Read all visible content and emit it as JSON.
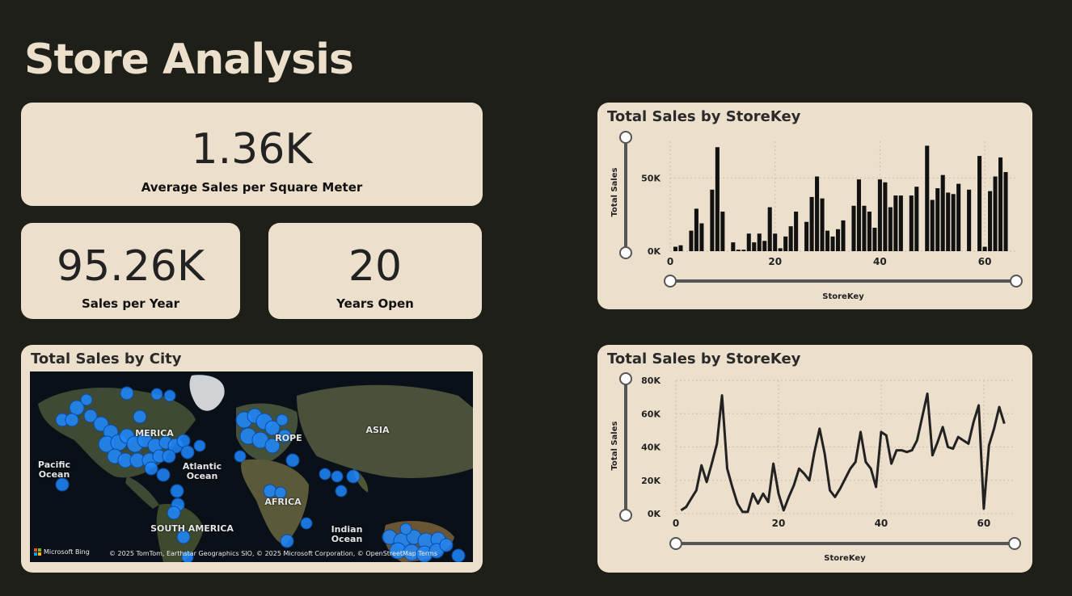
{
  "page": {
    "title": "Store Analysis"
  },
  "kpis": {
    "avg_sales_sqm": {
      "value": "1.36K",
      "label": "Average Sales per Square Meter"
    },
    "sales_per_year": {
      "value": "95.26K",
      "label": "Sales per Year"
    },
    "years_open": {
      "value": "20",
      "label": "Years Open"
    }
  },
  "map": {
    "title": "Total Sales by City",
    "labels": {
      "pacific": "Pacific Ocean",
      "atlantic": "Atlantic Ocean",
      "indian": "Indian Ocean",
      "asia": "ASIA",
      "africa": "AFRICA",
      "south_america": "SOUTH AMERICA",
      "europe": "ROPE",
      "america": "MERICA"
    },
    "attribution": "© 2025 TomTom, Earthstar Geographics SIO, © 2025 Microsoft Corporation, © OpenStreetMap  Terms",
    "provider": "Microsoft Bing"
  },
  "chart_data": [
    {
      "type": "bar",
      "title": "Total Sales by StoreKey",
      "xlabel": "StoreKey",
      "ylabel": "Total Sales",
      "xlim": [
        0,
        66
      ],
      "ylim": [
        0,
        75000
      ],
      "yticks": [
        "0K",
        "50K"
      ],
      "xticks": [
        "0",
        "20",
        "40",
        "60"
      ],
      "x": [
        1,
        2,
        3,
        4,
        5,
        6,
        7,
        8,
        9,
        10,
        11,
        12,
        13,
        14,
        15,
        16,
        17,
        18,
        19,
        20,
        21,
        22,
        23,
        24,
        25,
        26,
        27,
        28,
        29,
        30,
        31,
        32,
        33,
        34,
        35,
        36,
        37,
        38,
        39,
        40,
        41,
        42,
        43,
        44,
        45,
        46,
        47,
        48,
        49,
        50,
        51,
        52,
        53,
        54,
        55,
        56,
        57,
        58,
        59,
        60,
        61,
        62,
        63,
        64,
        65,
        66
      ],
      "values": [
        3000,
        4000,
        0,
        14000,
        29000,
        19000,
        0,
        42000,
        71000,
        27000,
        0,
        6000,
        1000,
        1000,
        12000,
        6000,
        12000,
        7000,
        30000,
        12000,
        2000,
        10000,
        17000,
        27000,
        0,
        20000,
        37000,
        51000,
        36000,
        14000,
        10000,
        15000,
        21000,
        0,
        31000,
        49000,
        31000,
        27000,
        16000,
        49000,
        47000,
        30000,
        38000,
        38000,
        0,
        38000,
        44000,
        0,
        72000,
        35000,
        43000,
        52000,
        40000,
        39000,
        46000,
        0,
        42000,
        0,
        65000,
        3000,
        41000,
        51000,
        64000,
        54000,
        0,
        0
      ],
      "grid": true
    },
    {
      "type": "line",
      "title": "Total Sales by StoreKey",
      "xlabel": "StoreKey",
      "ylabel": "Total Sales",
      "xlim": [
        0,
        66
      ],
      "ylim": [
        0,
        80000
      ],
      "yticks": [
        "0K",
        "20K",
        "40K",
        "60K",
        "80K"
      ],
      "xticks": [
        "0",
        "20",
        "40",
        "60"
      ],
      "x": [
        1,
        2,
        3,
        4,
        5,
        6,
        7,
        8,
        9,
        10,
        11,
        12,
        13,
        14,
        15,
        16,
        17,
        18,
        19,
        20,
        21,
        22,
        23,
        24,
        25,
        26,
        27,
        28,
        29,
        30,
        31,
        32,
        33,
        34,
        35,
        36,
        37,
        38,
        39,
        40,
        41,
        42,
        43,
        44,
        45,
        46,
        47,
        48,
        49,
        50,
        51,
        52,
        53,
        54,
        55,
        56,
        57,
        58,
        59,
        60,
        61,
        62,
        63,
        64,
        65,
        66
      ],
      "values": [
        2000,
        4000,
        9000,
        14000,
        29000,
        19000,
        30000,
        42000,
        71000,
        27000,
        16000,
        6000,
        1000,
        1000,
        12000,
        6000,
        12000,
        7000,
        30000,
        12000,
        2000,
        10000,
        17000,
        27000,
        24000,
        20000,
        37000,
        51000,
        36000,
        14000,
        10000,
        15000,
        21000,
        27000,
        31000,
        49000,
        31000,
        27000,
        16000,
        49000,
        47000,
        30000,
        38000,
        38000,
        37000,
        38000,
        44000,
        58000,
        72000,
        35000,
        43000,
        52000,
        40000,
        39000,
        46000,
        44000,
        42000,
        55000,
        65000,
        3000,
        41000,
        51000,
        64000,
        54000,
        0,
        0
      ],
      "grid": true
    }
  ],
  "colors": {
    "bg": "#1e1f19",
    "card": "#ecdfcb",
    "bar": "#111111",
    "dot": "#1e88ff"
  }
}
